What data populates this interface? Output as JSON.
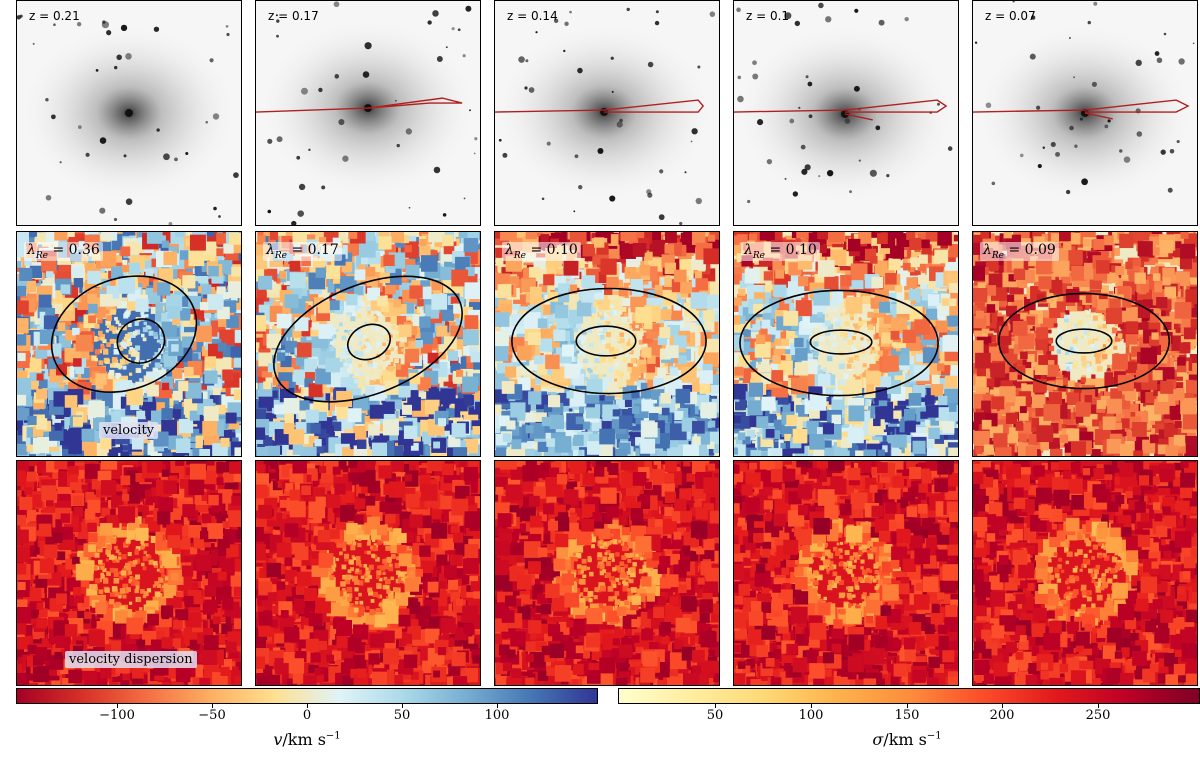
{
  "panels": [
    {
      "z_label": "z = 0.21",
      "lambda_value": "= 0.36",
      "has_track": false
    },
    {
      "z_label": "z = 0.17",
      "lambda_value": "= 0.17",
      "has_track": true
    },
    {
      "z_label": "z = 0.14",
      "lambda_value": "= 0.10",
      "has_track": true
    },
    {
      "z_label": "z = 0.1",
      "lambda_value": "= 0.10",
      "has_track": true
    },
    {
      "z_label": "z = 0.07",
      "lambda_value": "= 0.09",
      "has_track": true
    }
  ],
  "lambda_symbol": "λ",
  "lambda_sub": "Re",
  "velocity_tag": "velocity",
  "dispersion_tag": "velocity dispersion",
  "colorbars": {
    "velocity": {
      "ticks": [
        "−100",
        "−50",
        "0",
        "50",
        "100"
      ],
      "label_symbol": "v",
      "label_units": "/km s",
      "label_exp": "−1"
    },
    "dispersion": {
      "ticks": [
        "50",
        "100",
        "150",
        "200",
        "250"
      ],
      "label_symbol": "σ",
      "label_units": "/km s",
      "label_exp": "−1"
    }
  },
  "colors": {
    "track": "#b02020",
    "velocity_map": [
      "#a50026",
      "#d73027",
      "#f46d43",
      "#fdae61",
      "#fee090",
      "#e0f3f8",
      "#abd9e9",
      "#74add1",
      "#4575b4",
      "#313695"
    ],
    "dispersion_map": [
      "#ffffcc",
      "#ffeda0",
      "#fed976",
      "#feb24c",
      "#fd8d3c",
      "#fc4e2a",
      "#e31a1c",
      "#bd0026",
      "#800026"
    ]
  }
}
